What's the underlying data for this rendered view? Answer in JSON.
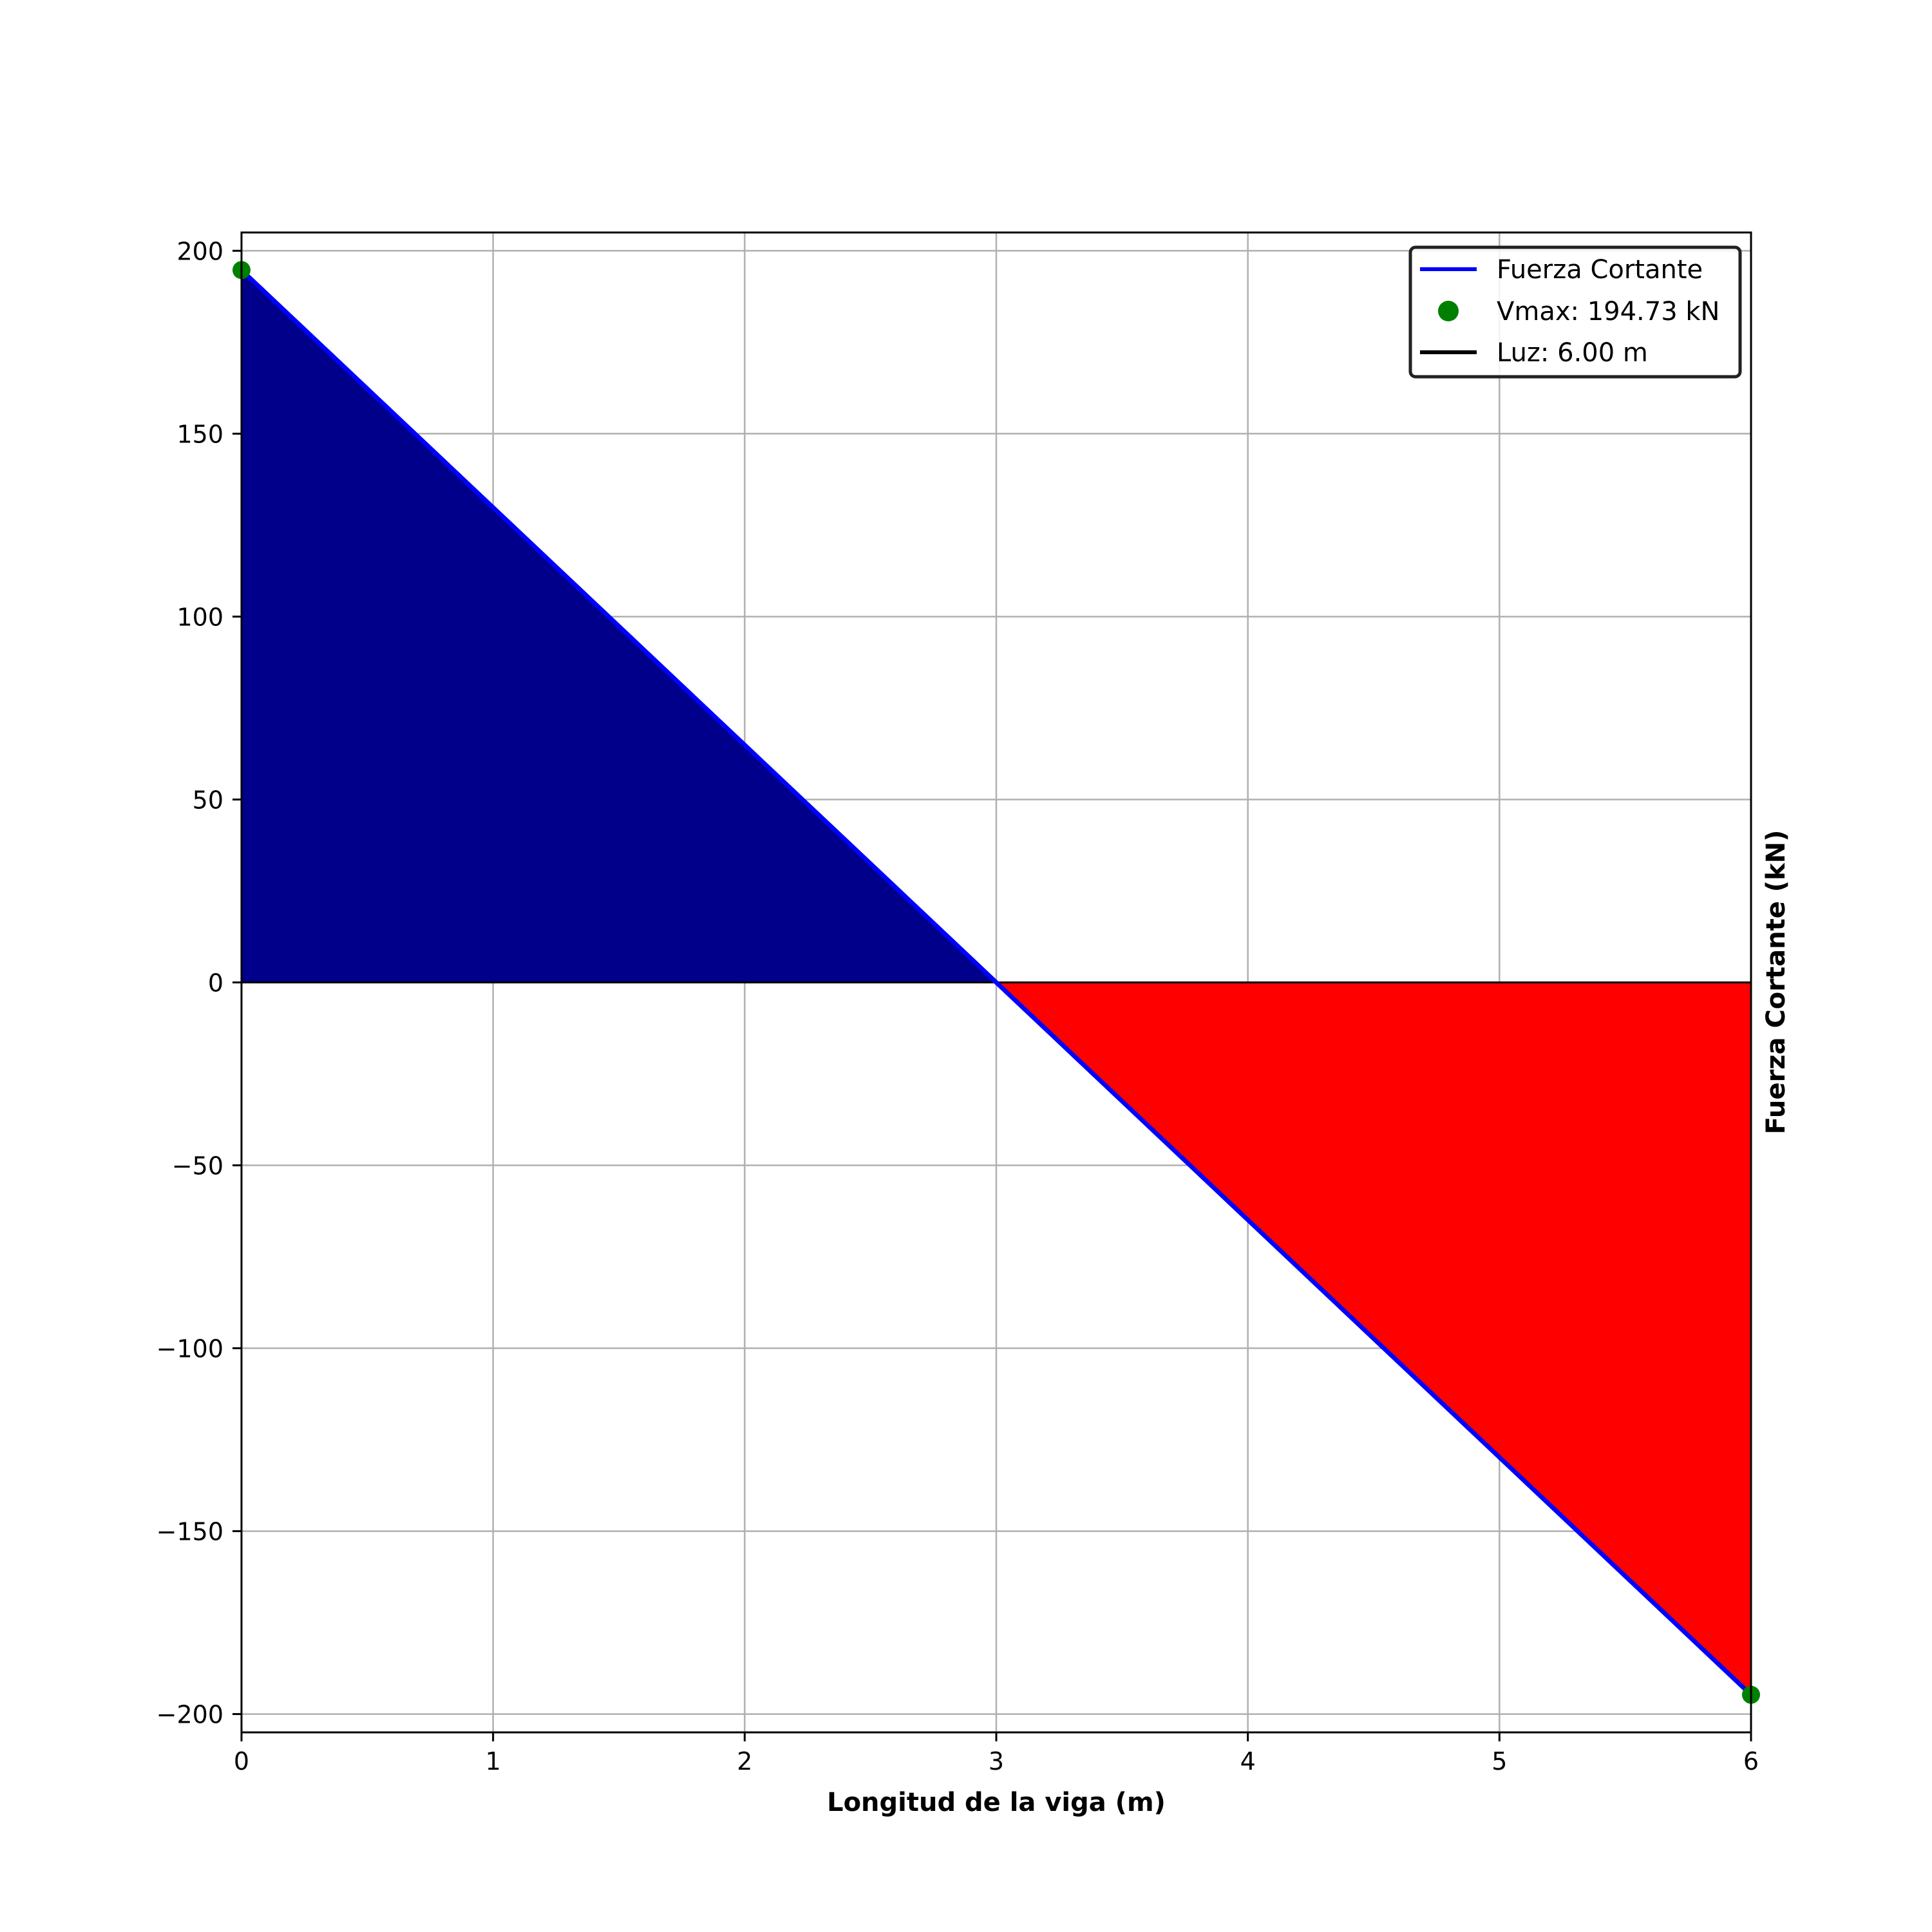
{
  "chart_data": {
    "type": "line",
    "xlabel": "Longitud de la viga (m)",
    "ylabel": "Fuerza Cortante (kN)",
    "xlim": [
      0,
      6
    ],
    "ylim": [
      -205,
      205
    ],
    "x_ticks": [
      0,
      1,
      2,
      3,
      4,
      5,
      6
    ],
    "y_ticks": [
      -200,
      -150,
      -100,
      -50,
      0,
      50,
      100,
      150,
      200
    ],
    "x_tick_labels": [
      "0",
      "1",
      "2",
      "3",
      "4",
      "5",
      "6"
    ],
    "y_tick_labels": [
      "−200",
      "−150",
      "−100",
      "−50",
      "0",
      "50",
      "100",
      "150",
      "200"
    ],
    "grid": true,
    "legend_position": "top-right",
    "series": [
      {
        "name": "Fuerza Cortante",
        "kind": "line",
        "color": "#0000ff",
        "x": [
          0,
          6
        ],
        "y": [
          194.73,
          -194.73
        ]
      },
      {
        "name": "Vmax: 194.73 kN",
        "kind": "scatter",
        "color": "#008000",
        "x": [
          0,
          6
        ],
        "y": [
          194.73,
          -194.73
        ]
      },
      {
        "name": "Luz: 6.00 m",
        "kind": "line",
        "color": "#000000",
        "x": [
          0,
          6
        ],
        "y": [
          0,
          0
        ]
      }
    ],
    "fills": [
      {
        "region": "positive",
        "color": "#00008b"
      },
      {
        "region": "negative",
        "color": "#ff0000"
      }
    ]
  }
}
